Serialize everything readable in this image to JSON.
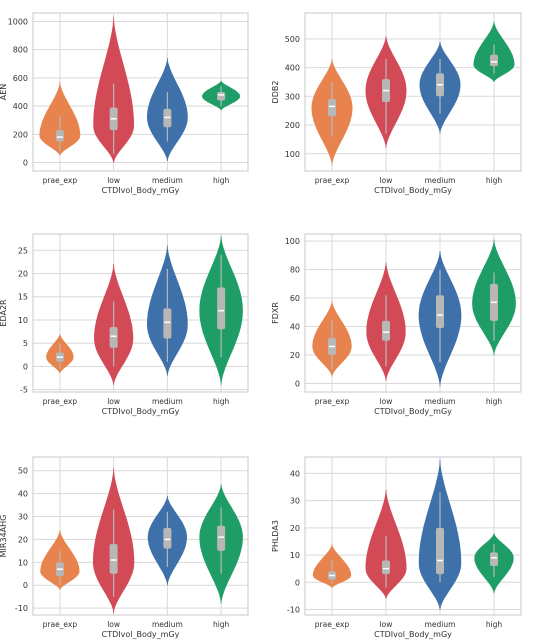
{
  "colors": {
    "prae_exp": "#E8834E",
    "low": "#D14A56",
    "medium": "#3E71AA",
    "high": "#1E9E66",
    "box": "#B7B7B7",
    "median": "#FFFFFF",
    "grid": "#D9D9D9",
    "axes": "#C8C8C8"
  },
  "chart_data": [
    {
      "type": "violin",
      "xlabel": "CTDIvol_Body_mGy",
      "ylabel": "AEN",
      "categories": [
        "prae_exp",
        "low",
        "medium",
        "high"
      ],
      "ylim": [
        -60,
        1060
      ],
      "yticks": [
        0,
        200,
        400,
        600,
        800,
        1000
      ],
      "grid": true,
      "series": [
        {
          "category": "prae_exp",
          "min": 50,
          "max": 570,
          "q1": 150,
          "median": 180,
          "q3": 230,
          "whisker_low": 80,
          "whisker_high": 330,
          "peak": 190,
          "width": 0.75
        },
        {
          "category": "low",
          "min": 0,
          "max": 1030,
          "q1": 230,
          "median": 310,
          "q3": 390,
          "whisker_low": 60,
          "whisker_high": 560,
          "peak": 260,
          "width": 0.75
        },
        {
          "category": "medium",
          "min": 10,
          "max": 740,
          "q1": 250,
          "median": 320,
          "q3": 380,
          "whisker_low": 150,
          "whisker_high": 500,
          "peak": 320,
          "width": 0.75
        },
        {
          "category": "high",
          "min": 370,
          "max": 580,
          "q1": 440,
          "median": 480,
          "q3": 500,
          "whisker_low": 400,
          "whisker_high": 540,
          "peak": 470,
          "width": 0.7
        }
      ]
    },
    {
      "type": "violin",
      "xlabel": "CTDIvol_Body_mGy",
      "ylabel": "DDB2",
      "categories": [
        "prae_exp",
        "low",
        "medium",
        "high"
      ],
      "ylim": [
        40,
        590
      ],
      "yticks": [
        100,
        200,
        300,
        400,
        500
      ],
      "grid": true,
      "series": [
        {
          "category": "prae_exp",
          "min": 60,
          "max": 430,
          "q1": 230,
          "median": 265,
          "q3": 290,
          "whisker_low": 160,
          "whisker_high": 350,
          "peak": 260,
          "width": 0.75
        },
        {
          "category": "low",
          "min": 120,
          "max": 510,
          "q1": 280,
          "median": 320,
          "q3": 360,
          "whisker_low": 170,
          "whisker_high": 430,
          "peak": 320,
          "width": 0.75
        },
        {
          "category": "medium",
          "min": 170,
          "max": 490,
          "q1": 300,
          "median": 340,
          "q3": 380,
          "whisker_low": 240,
          "whisker_high": 430,
          "peak": 340,
          "width": 0.75
        },
        {
          "category": "high",
          "min": 350,
          "max": 560,
          "q1": 405,
          "median": 420,
          "q3": 445,
          "whisker_low": 380,
          "whisker_high": 480,
          "peak": 410,
          "width": 0.75
        }
      ]
    },
    {
      "type": "violin",
      "xlabel": "CTDIvol_Body_mGy",
      "ylabel": "EDA2R",
      "categories": [
        "prae_exp",
        "low",
        "medium",
        "high"
      ],
      "ylim": [
        -5.5,
        28.5
      ],
      "yticks": [
        -5,
        0,
        5,
        10,
        15,
        20,
        25
      ],
      "grid": true,
      "series": [
        {
          "category": "prae_exp",
          "min": -1.5,
          "max": 7,
          "q1": 1,
          "median": 2,
          "q3": 3,
          "whisker_low": -0.5,
          "whisker_high": 5,
          "peak": 2,
          "width": 0.5
        },
        {
          "category": "low",
          "min": -4,
          "max": 22,
          "q1": 4,
          "median": 6.5,
          "q3": 8.5,
          "whisker_low": 0,
          "whisker_high": 14,
          "peak": 6,
          "width": 0.72
        },
        {
          "category": "medium",
          "min": -2,
          "max": 26,
          "q1": 6,
          "median": 9.5,
          "q3": 12.5,
          "whisker_low": 1,
          "whisker_high": 21,
          "peak": 9,
          "width": 0.75
        },
        {
          "category": "high",
          "min": -4,
          "max": 28,
          "q1": 8,
          "median": 12,
          "q3": 17,
          "whisker_low": 2,
          "whisker_high": 24,
          "peak": 12,
          "width": 0.8
        }
      ]
    },
    {
      "type": "violin",
      "xlabel": "CTDIvol_Body_mGy",
      "ylabel": "FDXR",
      "categories": [
        "prae_exp",
        "low",
        "medium",
        "high"
      ],
      "ylim": [
        -6,
        105
      ],
      "yticks": [
        0,
        20,
        40,
        60,
        80,
        100
      ],
      "grid": true,
      "series": [
        {
          "category": "prae_exp",
          "min": 5,
          "max": 58,
          "q1": 20,
          "median": 26,
          "q3": 32,
          "whisker_low": 10,
          "whisker_high": 45,
          "peak": 26,
          "width": 0.72
        },
        {
          "category": "low",
          "min": 2,
          "max": 85,
          "q1": 30,
          "median": 36,
          "q3": 44,
          "whisker_low": 12,
          "whisker_high": 62,
          "peak": 36,
          "width": 0.72
        },
        {
          "category": "medium",
          "min": -2,
          "max": 93,
          "q1": 39,
          "median": 48,
          "q3": 62,
          "whisker_low": 15,
          "whisker_high": 80,
          "peak": 48,
          "width": 0.78
        },
        {
          "category": "high",
          "min": 20,
          "max": 101,
          "q1": 44,
          "median": 57,
          "q3": 70,
          "whisker_low": 30,
          "whisker_high": 78,
          "peak": 56,
          "width": 0.8
        }
      ]
    },
    {
      "type": "violin",
      "xlabel": "CTDIvol_Body_mGy",
      "ylabel": "MIR34AHG",
      "categories": [
        "prae_exp",
        "low",
        "medium",
        "high"
      ],
      "ylim": [
        -13,
        56
      ],
      "yticks": [
        -10,
        0,
        10,
        20,
        30,
        40,
        50
      ],
      "grid": true,
      "series": [
        {
          "category": "prae_exp",
          "min": -2,
          "max": 24,
          "q1": 4,
          "median": 7,
          "q3": 10,
          "whisker_low": 0,
          "whisker_high": 15,
          "peak": 6,
          "width": 0.72
        },
        {
          "category": "low",
          "min": -12,
          "max": 51,
          "q1": 5,
          "median": 11,
          "q3": 18,
          "whisker_low": -5,
          "whisker_high": 33,
          "peak": 10,
          "width": 0.76
        },
        {
          "category": "medium",
          "min": 0,
          "max": 39,
          "q1": 16,
          "median": 20,
          "q3": 25,
          "whisker_low": 8,
          "whisker_high": 32,
          "peak": 21,
          "width": 0.72
        },
        {
          "category": "high",
          "min": -8,
          "max": 44,
          "q1": 15,
          "median": 21,
          "q3": 26,
          "whisker_low": 5,
          "whisker_high": 34,
          "peak": 21,
          "width": 0.8
        }
      ]
    },
    {
      "type": "violin",
      "xlabel": "CTDIvol_Body_mGy",
      "ylabel": "PHLDA3",
      "categories": [
        "prae_exp",
        "low",
        "medium",
        "high"
      ],
      "ylim": [
        -12,
        46
      ],
      "yticks": [
        -10,
        0,
        10,
        20,
        30,
        40
      ],
      "grid": true,
      "series": [
        {
          "category": "prae_exp",
          "min": -2,
          "max": 14,
          "q1": 1,
          "median": 2.5,
          "q3": 4,
          "whisker_low": -0.5,
          "whisker_high": 8,
          "peak": 2.5,
          "width": 0.7
        },
        {
          "category": "low",
          "min": -6,
          "max": 34,
          "q1": 3,
          "median": 5,
          "q3": 8,
          "whisker_low": -2,
          "whisker_high": 17,
          "peak": 5,
          "width": 0.75
        },
        {
          "category": "medium",
          "min": -10,
          "max": 45,
          "q1": 3,
          "median": 8,
          "q3": 20,
          "whisker_low": 0,
          "whisker_high": 33,
          "peak": 7,
          "width": 0.78
        },
        {
          "category": "high",
          "min": -4,
          "max": 18,
          "q1": 6,
          "median": 9,
          "q3": 11,
          "whisker_low": 2,
          "whisker_high": 14,
          "peak": 9,
          "width": 0.72
        }
      ]
    }
  ]
}
